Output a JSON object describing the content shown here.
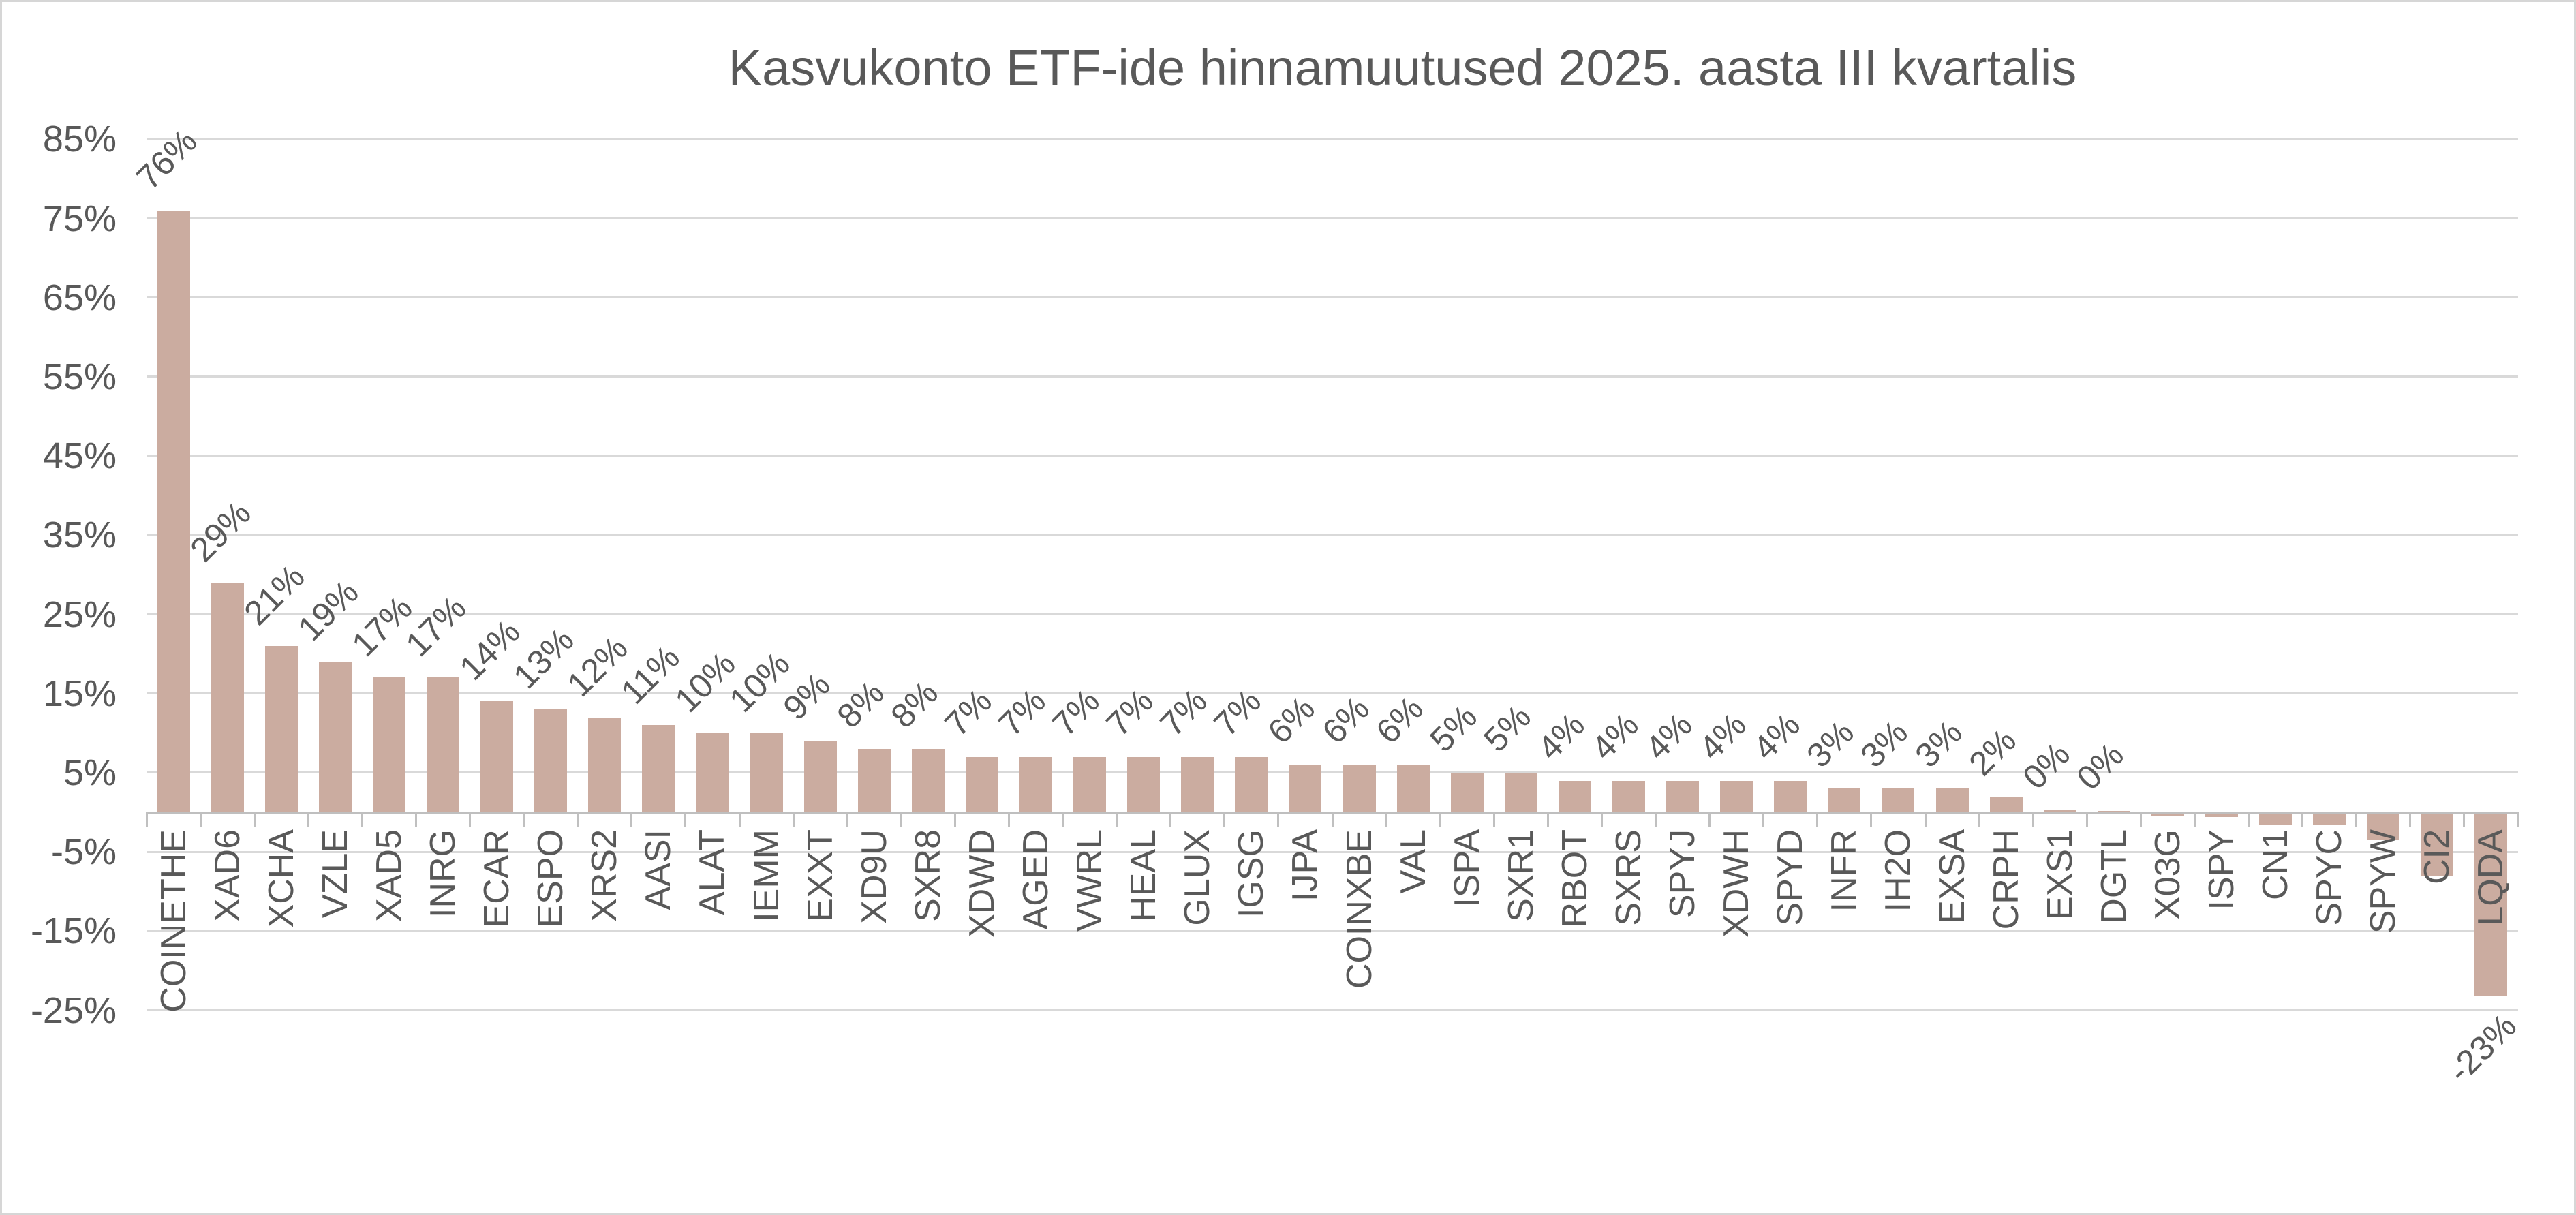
{
  "title": "Kasvukonto ETF-ide hinnamuutused 2025. aasta III kvartalis",
  "chart_data": {
    "type": "bar",
    "title": "Kasvukonto ETF-ide hinnamuutused 2025. aasta III kvartalis",
    "categories": [
      "COINETHE",
      "XAD6",
      "XCHA",
      "VZLE",
      "XAD5",
      "INRG",
      "ECAR",
      "ESPO",
      "XRS2",
      "AASI",
      "ALAT",
      "IEMM",
      "EXXT",
      "XD9U",
      "SXR8",
      "XDWD",
      "AGED",
      "VWRL",
      "HEAL",
      "GLUX",
      "IGSG",
      "IJPA",
      "COINXBE",
      "VAL",
      "ISPA",
      "SXR1",
      "RBOT",
      "SXRS",
      "SPYJ",
      "XDWH",
      "SPYD",
      "INFR",
      "IH2O",
      "EXSA",
      "CRPH",
      "EXS1",
      "DGTL",
      "X03G",
      "ISPY",
      "CN1",
      "SPYC",
      "SPYW",
      "CI2",
      "LQDA"
    ],
    "values": [
      76,
      29,
      21,
      19,
      17,
      17,
      14,
      13,
      12,
      11,
      10,
      10,
      9,
      8,
      8,
      7,
      7,
      7,
      7,
      7,
      7,
      6,
      6,
      6,
      5,
      5,
      4,
      4,
      4,
      4,
      4,
      3,
      3,
      3,
      2,
      0.3,
      0.2,
      -0.4,
      -0.5,
      -1.5,
      -1.4,
      -3.3,
      -7.9,
      -23
    ],
    "data_labels": [
      "76%",
      "29%",
      "21%",
      "19%",
      "17%",
      "17%",
      "14%",
      "13%",
      "12%",
      "11%",
      "10%",
      "10%",
      "9%",
      "8%",
      "8%",
      "7%",
      "7%",
      "7%",
      "7%",
      "7%",
      "7%",
      "6%",
      "6%",
      "6%",
      "5%",
      "5%",
      "4%",
      "4%",
      "4%",
      "4%",
      "4%",
      "3%",
      "3%",
      "3%",
      "2%",
      "0%",
      "0%",
      "",
      "",
      "",
      "",
      "",
      "",
      "-23%"
    ],
    "xlabel": "",
    "ylabel": "",
    "ylim": [
      -25,
      85
    ],
    "yticks": [
      85,
      75,
      65,
      55,
      45,
      35,
      25,
      15,
      5,
      -5,
      -15,
      -25
    ],
    "ytick_suffix": "%",
    "grid": true,
    "legend": "none",
    "bar_color": "#cbaca0",
    "grid_color": "#d9d9d9",
    "axis_color": "#bfbfbf",
    "text_color": "#595959",
    "background_color": "#ffffff",
    "border_color": "#d6d6d6"
  }
}
